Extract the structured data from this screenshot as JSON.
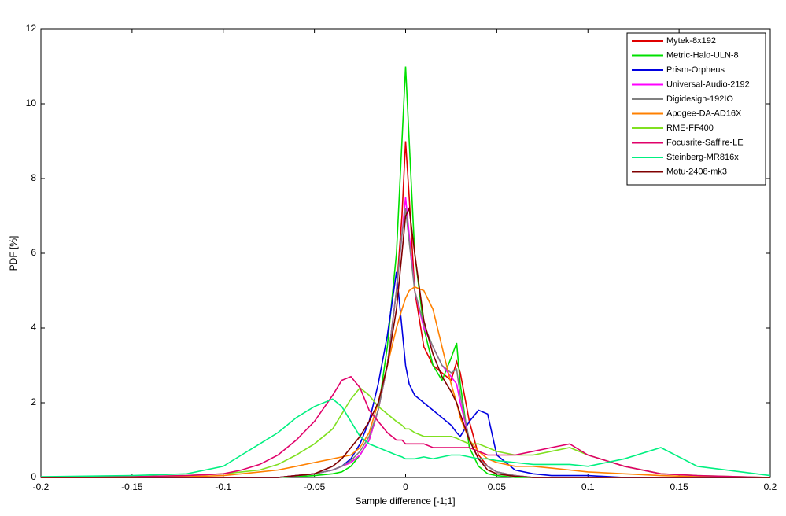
{
  "chart_data": {
    "type": "line",
    "x_label": "Sample difference [-1;1]",
    "y_label": "PDF [%]",
    "x": [
      -0.2,
      -0.15,
      -0.12,
      -0.1,
      -0.09,
      -0.08,
      -0.07,
      -0.06,
      -0.05,
      -0.04,
      -0.035,
      -0.03,
      -0.025,
      -0.02,
      -0.015,
      -0.01,
      -0.005,
      -0.002,
      0,
      0.002,
      0.005,
      0.01,
      0.015,
      0.02,
      0.025,
      0.028,
      0.03,
      0.035,
      0.04,
      0.045,
      0.05,
      0.06,
      0.07,
      0.08,
      0.09,
      0.1,
      0.12,
      0.14,
      0.16,
      0.2
    ],
    "xlim": [
      -0.2,
      0.2
    ],
    "xticks": [
      -0.2,
      -0.15,
      -0.1,
      -0.05,
      0,
      0.05,
      0.1,
      0.15,
      0.2
    ],
    "ylim": [
      0,
      12
    ],
    "yticks": [
      0,
      2,
      4,
      6,
      8,
      10,
      12
    ],
    "grid": false,
    "legend": "upper right",
    "series": [
      {
        "name": "Mytek-8x192",
        "color": "#e00000",
        "values": [
          0,
          0,
          0,
          0,
          0,
          0,
          0,
          0.05,
          0.1,
          0.2,
          0.3,
          0.4,
          0.6,
          1.0,
          1.8,
          3,
          5,
          7,
          9,
          7.5,
          5,
          3.5,
          3,
          2.8,
          2.6,
          3.1,
          2.8,
          1.5,
          0.6,
          0.3,
          0.15,
          0.05,
          0,
          0,
          0,
          0,
          0,
          0,
          0,
          0
        ]
      },
      {
        "name": "Metric-Halo-ULN-8",
        "color": "#00e000",
        "values": [
          0,
          0,
          0,
          0,
          0,
          0,
          0,
          0.02,
          0.05,
          0.1,
          0.15,
          0.3,
          0.6,
          1.0,
          1.8,
          3.5,
          6,
          9,
          11,
          9,
          6,
          4,
          3,
          2.6,
          3.2,
          3.6,
          2.5,
          0.8,
          0.3,
          0.1,
          0.05,
          0,
          0,
          0,
          0,
          0,
          0,
          0,
          0,
          0
        ]
      },
      {
        "name": "Prism-Orpheus",
        "color": "#0000e0",
        "values": [
          0,
          0,
          0,
          0,
          0,
          0,
          0,
          0.05,
          0.1,
          0.2,
          0.3,
          0.5,
          0.9,
          1.5,
          2.5,
          3.8,
          5.5,
          4,
          3,
          2.5,
          2.2,
          2,
          1.8,
          1.6,
          1.4,
          1.2,
          1.1,
          1.5,
          1.8,
          1.7,
          0.6,
          0.2,
          0.1,
          0.05,
          0.05,
          0.05,
          0,
          0,
          0,
          0
        ]
      },
      {
        "name": "Universal-Audio-2192",
        "color": "#ff00ff",
        "values": [
          0,
          0,
          0,
          0,
          0,
          0,
          0,
          0.05,
          0.1,
          0.2,
          0.3,
          0.4,
          0.6,
          1,
          1.8,
          3,
          5,
          6.5,
          7.5,
          6.5,
          5,
          4,
          3.5,
          3,
          2.7,
          2.5,
          2,
          1,
          0.5,
          0.3,
          0.15,
          0.05,
          0,
          0,
          0,
          0,
          0,
          0,
          0,
          0
        ]
      },
      {
        "name": "Digidesign-192IO",
        "color": "#808080",
        "values": [
          0,
          0,
          0,
          0,
          0,
          0,
          0,
          0.05,
          0.1,
          0.2,
          0.3,
          0.45,
          0.7,
          1.1,
          1.8,
          3,
          5,
          6.5,
          7.2,
          6.3,
          5,
          4.1,
          3.5,
          3,
          2.8,
          2.9,
          2.2,
          1,
          0.5,
          0.3,
          0.15,
          0.05,
          0,
          0,
          0,
          0,
          0,
          0,
          0,
          0
        ]
      },
      {
        "name": "Apogee-DA-AD16X",
        "color": "#ff8000",
        "values": [
          0,
          0,
          0.02,
          0.05,
          0.1,
          0.15,
          0.2,
          0.3,
          0.4,
          0.5,
          0.55,
          0.6,
          0.8,
          1.2,
          2,
          3,
          4,
          4.5,
          4.8,
          5,
          5.1,
          5,
          4.5,
          3.5,
          2.5,
          2,
          1.6,
          1,
          0.7,
          0.5,
          0.4,
          0.3,
          0.3,
          0.25,
          0.2,
          0.15,
          0.1,
          0.05,
          0.02,
          0
        ]
      },
      {
        "name": "RME-FF400",
        "color": "#80e020",
        "values": [
          0,
          0.02,
          0.05,
          0.1,
          0.15,
          0.2,
          0.35,
          0.6,
          0.9,
          1.3,
          1.7,
          2.1,
          2.4,
          2.2,
          1.9,
          1.7,
          1.5,
          1.4,
          1.3,
          1.3,
          1.2,
          1.1,
          1.1,
          1.1,
          1.1,
          1.05,
          1.0,
          0.9,
          0.9,
          0.8,
          0.7,
          0.6,
          0.6,
          0.7,
          0.8,
          0.6,
          0.3,
          0.1,
          0.05,
          0
        ]
      },
      {
        "name": "Focusrite-Saffire-LE",
        "color": "#e0006a",
        "values": [
          0,
          0.02,
          0.05,
          0.1,
          0.2,
          0.35,
          0.6,
          1.0,
          1.5,
          2.2,
          2.6,
          2.7,
          2.4,
          1.8,
          1.5,
          1.2,
          1,
          1,
          0.9,
          0.9,
          0.9,
          0.9,
          0.8,
          0.8,
          0.8,
          0.8,
          0.8,
          0.8,
          0.7,
          0.6,
          0.6,
          0.6,
          0.7,
          0.8,
          0.9,
          0.6,
          0.3,
          0.1,
          0.05,
          0
        ]
      },
      {
        "name": "Steinberg-MR816x",
        "color": "#00f080",
        "values": [
          0.02,
          0.05,
          0.1,
          0.3,
          0.6,
          0.9,
          1.2,
          1.6,
          1.9,
          2.1,
          1.9,
          1.5,
          1.1,
          0.9,
          0.8,
          0.7,
          0.6,
          0.55,
          0.5,
          0.5,
          0.5,
          0.55,
          0.5,
          0.55,
          0.6,
          0.6,
          0.6,
          0.55,
          0.5,
          0.5,
          0.45,
          0.4,
          0.35,
          0.35,
          0.35,
          0.3,
          0.5,
          0.8,
          0.3,
          0.05
        ]
      },
      {
        "name": "Motu-2408-mk3",
        "color": "#800000",
        "values": [
          0,
          0,
          0,
          0,
          0,
          0,
          0,
          0.05,
          0.1,
          0.3,
          0.5,
          0.8,
          1.1,
          1.5,
          2,
          3,
          4.5,
          6,
          7,
          7.2,
          6,
          4.2,
          3.3,
          2.7,
          2.3,
          2,
          1.7,
          1,
          0.5,
          0.2,
          0.1,
          0.03,
          0,
          0,
          0,
          0,
          0,
          0,
          0,
          0
        ]
      }
    ]
  }
}
